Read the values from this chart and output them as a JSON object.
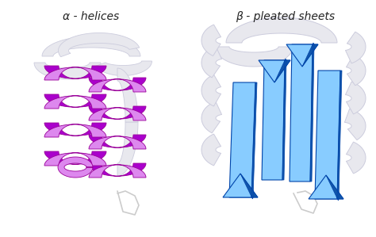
{
  "bg_color": "#ffffff",
  "left_label": "α - helices",
  "right_label": "β - pleated sheets",
  "label_fontsize": 10,
  "label_color": "#222222",
  "helix_light": "#dd88ee",
  "helix_mid": "#cc44dd",
  "helix_dark": "#aa00cc",
  "helix_edge": "#990099",
  "arrow_light": "#88ccff",
  "arrow_mid": "#44aaee",
  "arrow_dark": "#1155aa",
  "arrow_edge": "#0044aa",
  "ribbon_fill": "#e8e8ee",
  "ribbon_edge": "#ccccdd",
  "ribbon_shadow": "#d0d0dc",
  "fig_width": 4.74,
  "fig_height": 2.99,
  "dpi": 100
}
